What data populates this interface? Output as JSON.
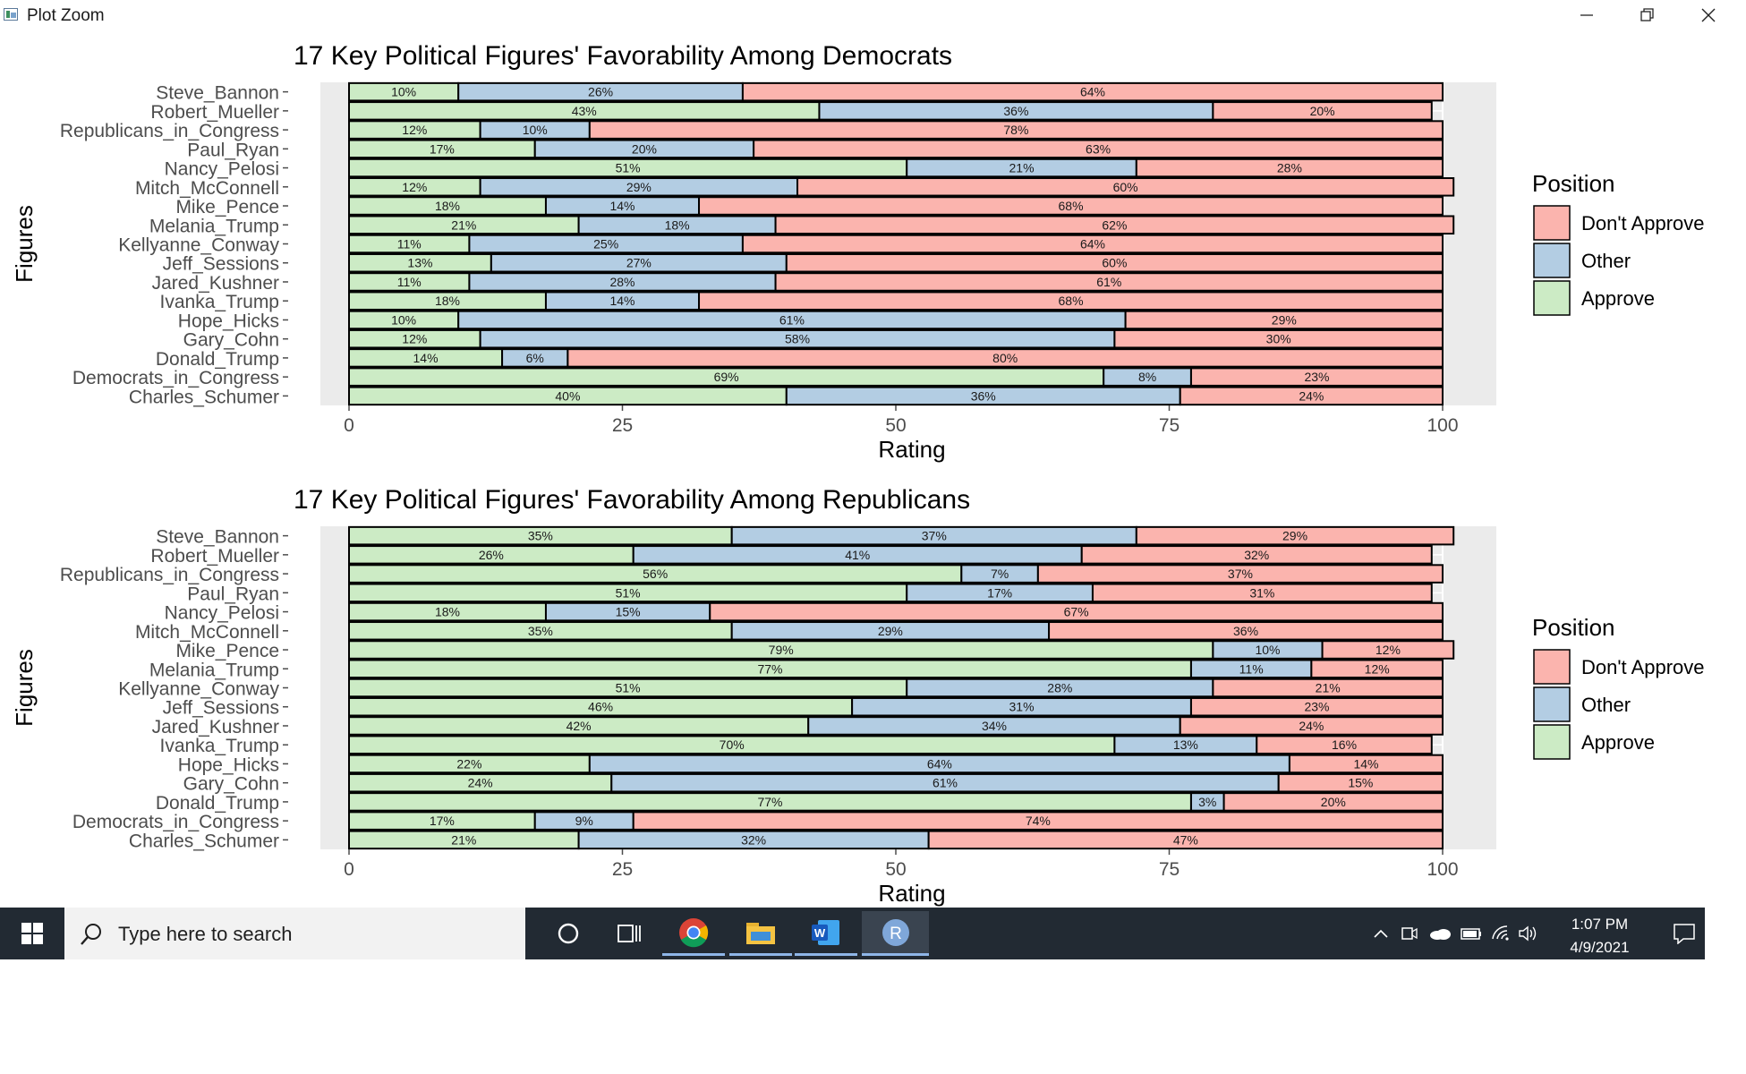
{
  "window": {
    "title": "Plot Zoom",
    "minimize_icon": "minimize-icon",
    "maximize_icon": "restore-icon",
    "close_icon": "close-icon"
  },
  "legend": {
    "title": "Position",
    "items": [
      {
        "label": "Don't Approve",
        "color": "#fbb4ae"
      },
      {
        "label": "Other",
        "color": "#b3cde3"
      },
      {
        "label": "Approve",
        "color": "#ccebc5"
      }
    ]
  },
  "chart_data": [
    {
      "type": "bar",
      "stacked": true,
      "orientation": "horizontal",
      "title": "17 Key Political Figures' Favorability Among Democrats",
      "xlabel": "Rating",
      "ylabel": "Figures",
      "xlim": [
        0,
        100
      ],
      "xticks": [
        0,
        25,
        50,
        75,
        100
      ],
      "legend_position": "right",
      "categories": [
        "Steve_Bannon",
        "Robert_Mueller",
        "Republicans_in_Congress",
        "Paul_Ryan",
        "Nancy_Pelosi",
        "Mitch_McConnell",
        "Mike_Pence",
        "Melania_Trump",
        "Kellyanne_Conway",
        "Jeff_Sessions",
        "Jared_Kushner",
        "Ivanka_Trump",
        "Hope_Hicks",
        "Gary_Cohn",
        "Donald_Trump",
        "Democrats_in_Congress",
        "Charles_Schumer"
      ],
      "series": [
        {
          "name": "Approve",
          "values": [
            10,
            43,
            12,
            17,
            51,
            12,
            18,
            21,
            11,
            13,
            11,
            18,
            10,
            12,
            14,
            69,
            40
          ]
        },
        {
          "name": "Other",
          "values": [
            26,
            36,
            10,
            20,
            21,
            29,
            14,
            18,
            25,
            27,
            28,
            14,
            61,
            58,
            6,
            8,
            36
          ]
        },
        {
          "name": "Don't Approve",
          "values": [
            64,
            20,
            78,
            63,
            28,
            60,
            68,
            62,
            64,
            60,
            61,
            68,
            29,
            30,
            80,
            23,
            24
          ]
        }
      ]
    },
    {
      "type": "bar",
      "stacked": true,
      "orientation": "horizontal",
      "title": "17 Key Political Figures' Favorability Among Republicans",
      "xlabel": "Rating",
      "ylabel": "Figures",
      "xlim": [
        0,
        100
      ],
      "xticks": [
        0,
        25,
        50,
        75,
        100
      ],
      "legend_position": "right",
      "categories": [
        "Steve_Bannon",
        "Robert_Mueller",
        "Republicans_in_Congress",
        "Paul_Ryan",
        "Nancy_Pelosi",
        "Mitch_McConnell",
        "Mike_Pence",
        "Melania_Trump",
        "Kellyanne_Conway",
        "Jeff_Sessions",
        "Jared_Kushner",
        "Ivanka_Trump",
        "Hope_Hicks",
        "Gary_Cohn",
        "Donald_Trump",
        "Democrats_in_Congress",
        "Charles_Schumer"
      ],
      "series": [
        {
          "name": "Approve",
          "values": [
            35,
            26,
            56,
            51,
            18,
            35,
            79,
            77,
            51,
            46,
            42,
            70,
            22,
            24,
            77,
            17,
            21
          ]
        },
        {
          "name": "Other",
          "values": [
            37,
            41,
            7,
            17,
            15,
            29,
            10,
            11,
            28,
            31,
            34,
            13,
            64,
            61,
            3,
            9,
            32
          ]
        },
        {
          "name": "Don't Approve",
          "values": [
            29,
            32,
            37,
            31,
            67,
            36,
            12,
            12,
            21,
            23,
            24,
            16,
            14,
            15,
            20,
            74,
            47
          ]
        }
      ]
    }
  ],
  "taskbar": {
    "search_placeholder": "Type here to search",
    "start_icon": "windows-start-icon",
    "apps": [
      "cortana-icon",
      "task-view-icon",
      "chrome-icon",
      "file-explorer-icon",
      "word-icon",
      "r-icon"
    ],
    "time": "1:07 PM",
    "date": "4/9/2021"
  }
}
